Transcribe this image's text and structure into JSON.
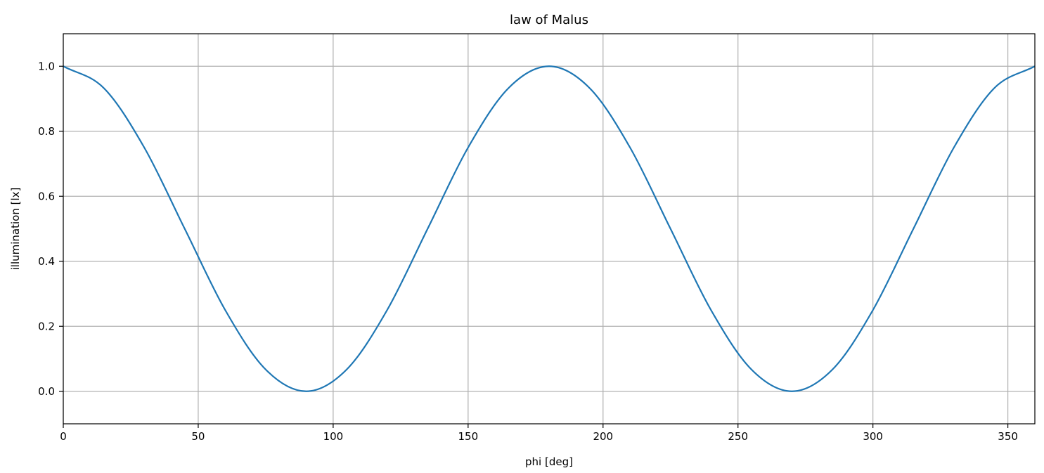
{
  "chart_data": {
    "type": "line",
    "title": "law of Malus",
    "xlabel": "phi [deg]",
    "ylabel": "illumination [lx]",
    "xlim": [
      0,
      360
    ],
    "ylim": [
      -0.1,
      1.1
    ],
    "x_ticks": [
      0,
      50,
      100,
      150,
      200,
      250,
      300,
      350
    ],
    "x_tick_labels": [
      "0",
      "50",
      "100",
      "150",
      "200",
      "250",
      "300",
      "350"
    ],
    "y_ticks": [
      0.0,
      0.2,
      0.4,
      0.6,
      0.8,
      1.0
    ],
    "y_tick_labels": [
      "0.0",
      "0.2",
      "0.4",
      "0.6",
      "0.8",
      "1.0"
    ],
    "grid": true,
    "series": [
      {
        "color": "#1f77b4",
        "x": [
          0,
          15,
          30,
          45,
          60,
          75,
          90,
          105,
          120,
          135,
          150,
          165,
          180,
          195,
          210,
          225,
          240,
          255,
          270,
          285,
          300,
          315,
          330,
          345,
          360
        ],
        "y": [
          1.0,
          0.933,
          0.75,
          0.5,
          0.25,
          0.067,
          0.0,
          0.067,
          0.25,
          0.5,
          0.75,
          0.933,
          1.0,
          0.933,
          0.75,
          0.5,
          0.25,
          0.067,
          0.0,
          0.067,
          0.25,
          0.5,
          0.75,
          0.933,
          1.0
        ]
      }
    ]
  }
}
